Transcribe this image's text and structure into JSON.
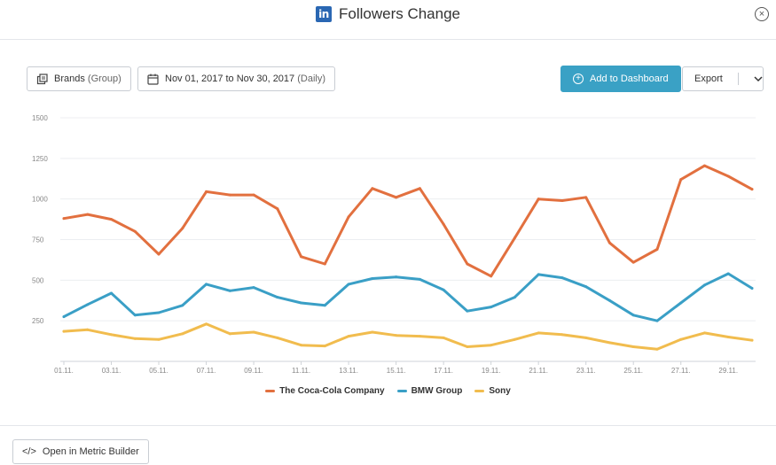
{
  "header": {
    "logo_text": "in",
    "title": "Followers Change",
    "close_symbol": "×"
  },
  "toolbar": {
    "brands_label": "Brands",
    "brands_group": "(Group)",
    "date_range": "Nov 01, 2017 to Nov 30, 2017",
    "date_granularity": "(Daily)",
    "add_label": "Add to Dashboard",
    "export_label": "Export"
  },
  "footer": {
    "open_label": "Open in Metric Builder",
    "open_icon": "</>"
  },
  "colors": {
    "coca_cola": "#e2703f",
    "bmw": "#3a9fc6",
    "sony": "#f1bc4e",
    "accent": "#3aa1c5"
  },
  "chart_data": {
    "type": "line",
    "x": [
      "01.11.",
      "02.11.",
      "03.11.",
      "04.11.",
      "05.11.",
      "06.11.",
      "07.11.",
      "08.11.",
      "09.11.",
      "10.11.",
      "11.11.",
      "12.11.",
      "13.11.",
      "14.11.",
      "15.11.",
      "16.11.",
      "17.11.",
      "18.11.",
      "19.11.",
      "20.11.",
      "21.11.",
      "22.11.",
      "23.11.",
      "24.11.",
      "25.11.",
      "26.11.",
      "27.11.",
      "28.11.",
      "29.11.",
      "30.11."
    ],
    "x_tick_labels": [
      "01.11.",
      "03.11.",
      "05.11.",
      "07.11.",
      "09.11.",
      "11.11.",
      "13.11.",
      "15.11.",
      "17.11.",
      "19.11.",
      "21.11.",
      "23.11.",
      "25.11.",
      "27.11.",
      "29.11."
    ],
    "y_ticks": [
      "1500",
      "1250",
      "1000",
      "750",
      "500",
      "250"
    ],
    "ylim": [
      0,
      1500
    ],
    "grid": true,
    "legend_position": "bottom-center",
    "series": [
      {
        "name": "The Coca-Cola Company",
        "values": [
          880,
          905,
          875,
          800,
          660,
          820,
          1045,
          1025,
          1025,
          940,
          645,
          600,
          890,
          1065,
          1010,
          1065,
          845,
          600,
          525,
          760,
          1000,
          990,
          1010,
          730,
          610,
          690,
          1120,
          1205,
          1140,
          1060
        ]
      },
      {
        "name": "BMW Group",
        "values": [
          275,
          350,
          420,
          285,
          300,
          345,
          475,
          435,
          455,
          395,
          360,
          345,
          475,
          510,
          520,
          505,
          440,
          310,
          335,
          395,
          535,
          515,
          460,
          375,
          285,
          250,
          360,
          470,
          540,
          450
        ]
      },
      {
        "name": "Sony",
        "values": [
          185,
          195,
          165,
          140,
          135,
          170,
          230,
          170,
          180,
          145,
          100,
          95,
          155,
          180,
          160,
          155,
          145,
          90,
          100,
          135,
          175,
          165,
          145,
          115,
          90,
          75,
          135,
          175,
          150,
          130
        ]
      }
    ]
  }
}
